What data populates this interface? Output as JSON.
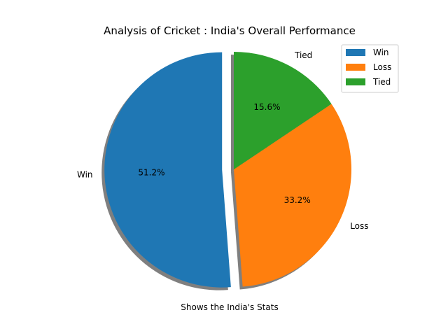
{
  "chart_data": {
    "type": "pie",
    "title": "Analysis of Cricket : India's Overall Performance",
    "xlabel": "Shows the India's Stats",
    "slices": [
      {
        "label": "Win",
        "value": 51.2,
        "pct_label": "51.2%",
        "color": "#1f77b4",
        "explode": true
      },
      {
        "label": "Loss",
        "value": 33.2,
        "pct_label": "33.2%",
        "color": "#ff7f0e",
        "explode": false
      },
      {
        "label": "Tied",
        "value": 15.6,
        "pct_label": "15.6%",
        "color": "#2ca02c",
        "explode": false
      }
    ],
    "shadow": true,
    "legend": {
      "placement": "top-right",
      "entries": [
        "Win",
        "Loss",
        "Tied"
      ]
    }
  }
}
